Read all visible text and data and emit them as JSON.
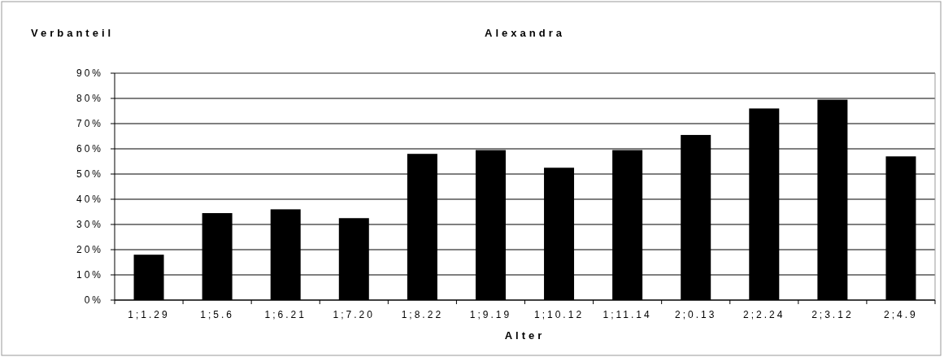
{
  "chart_data": {
    "type": "bar",
    "title": "Alexandra",
    "ylabel": "Verbanteil",
    "xlabel": "Alter",
    "categories": [
      "1;1.29",
      "1;5.6",
      "1;6.21",
      "1;7.20",
      "1;8.22",
      "1;9.19",
      "1;10.12",
      "1;11.14",
      "2;0.13",
      "2;2.24",
      "2;3.12",
      "2;4.9"
    ],
    "values": [
      18,
      34.5,
      36,
      32.5,
      58,
      59.5,
      52.5,
      59.5,
      65.5,
      76,
      79.5,
      57
    ],
    "color": "#000000",
    "ylim": [
      0,
      90
    ],
    "yticks": [
      {
        "value": 0,
        "label": "0%"
      },
      {
        "value": 10,
        "label": "10%"
      },
      {
        "value": 20,
        "label": "20%"
      },
      {
        "value": 30,
        "label": "30%"
      },
      {
        "value": 40,
        "label": "40%"
      },
      {
        "value": 50,
        "label": "50%"
      },
      {
        "value": 60,
        "label": "60%"
      },
      {
        "value": 70,
        "label": "70%"
      },
      {
        "value": 80,
        "label": "80%"
      },
      {
        "value": 90,
        "label": "90%"
      }
    ],
    "grid": "y"
  }
}
